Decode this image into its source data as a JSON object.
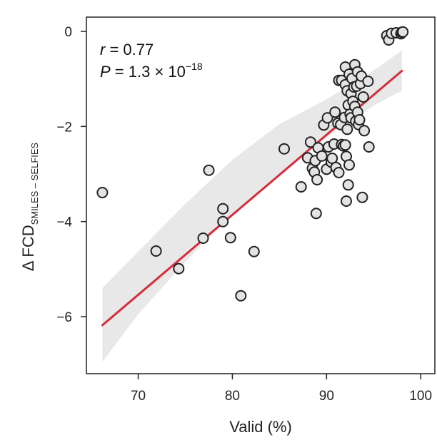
{
  "chart_data": {
    "type": "scatter",
    "title": "",
    "xlabel": "Valid (%)",
    "ylabel": {
      "prefix": "Δ FCD",
      "subscript": "SMILES – SELFIES"
    },
    "xlim": [
      64.5,
      101.5
    ],
    "ylim": [
      -7.2,
      0.3
    ],
    "xticks": [
      70,
      80,
      90,
      100
    ],
    "yticks": [
      0,
      -2,
      -4,
      -6
    ],
    "xtick_labels": [
      "70",
      "80",
      "90",
      "100"
    ],
    "ytick_labels": [
      "0",
      "−2",
      "−4",
      "−6"
    ],
    "annotations": {
      "r_symbol": "r",
      "r_value": " = 0.77",
      "p_symbol": "P",
      "p_value": " = 1.3 × 10",
      "p_exponent": "−18"
    },
    "regression": {
      "color": "#d62c3a",
      "x": [
        66.2,
        98.0
      ],
      "y": [
        -6.18,
        -0.83
      ],
      "band_color": "#e8e8e8",
      "band_upper": [
        [
          66.2,
          -5.4
        ],
        [
          70,
          -4.63
        ],
        [
          75,
          -3.63
        ],
        [
          80,
          -2.7
        ],
        [
          85,
          -1.95
        ],
        [
          90,
          -1.43
        ],
        [
          95,
          -0.82
        ],
        [
          98,
          -0.4
        ]
      ],
      "band_lower": [
        [
          66.2,
          -6.95
        ],
        [
          70,
          -5.95
        ],
        [
          75,
          -4.85
        ],
        [
          80,
          -3.83
        ],
        [
          85,
          -2.98
        ],
        [
          90,
          -2.23
        ],
        [
          95,
          -1.56
        ],
        [
          98,
          -1.25
        ]
      ]
    },
    "series": [
      {
        "name": "molecules",
        "points": [
          [
            66.2,
            -3.39
          ],
          [
            71.9,
            -4.62
          ],
          [
            74.3,
            -4.99
          ],
          [
            76.9,
            -4.35
          ],
          [
            77.5,
            -2.92
          ],
          [
            79.0,
            -3.73
          ],
          [
            79.0,
            -4.0
          ],
          [
            79.8,
            -4.34
          ],
          [
            80.9,
            -5.56
          ],
          [
            82.3,
            -4.63
          ],
          [
            85.5,
            -2.47
          ],
          [
            87.3,
            -3.27
          ],
          [
            88.0,
            -2.66
          ],
          [
            88.3,
            -2.33
          ],
          [
            88.5,
            -2.88
          ],
          [
            88.9,
            -3.83
          ],
          [
            88.7,
            -2.96
          ],
          [
            88.8,
            -2.72
          ],
          [
            89.0,
            -3.12
          ],
          [
            89.1,
            -2.45
          ],
          [
            89.5,
            -2.62
          ],
          [
            89.7,
            -1.97
          ],
          [
            90.0,
            -2.9
          ],
          [
            90.1,
            -1.82
          ],
          [
            90.2,
            -2.43
          ],
          [
            90.5,
            -2.75
          ],
          [
            90.6,
            -2.67
          ],
          [
            90.8,
            -2.37
          ],
          [
            90.9,
            -1.7
          ],
          [
            91.2,
            -1.93
          ],
          [
            91.0,
            -2.86
          ],
          [
            91.3,
            -2.97
          ],
          [
            91.3,
            -1.03
          ],
          [
            91.5,
            -1.96
          ],
          [
            91.6,
            -1.03
          ],
          [
            91.6,
            -2.38
          ],
          [
            91.8,
            -2.41
          ],
          [
            91.9,
            -1.81
          ],
          [
            92.0,
            -0.75
          ],
          [
            92.0,
            -1.12
          ],
          [
            92.0,
            -2.39
          ],
          [
            92.1,
            -2.63
          ],
          [
            92.1,
            -3.57
          ],
          [
            92.2,
            -1.25
          ],
          [
            92.2,
            -2.06
          ],
          [
            92.3,
            -1.55
          ],
          [
            92.3,
            -3.23
          ],
          [
            92.4,
            -2.81
          ],
          [
            92.4,
            -0.9
          ],
          [
            92.5,
            -1.74
          ],
          [
            92.6,
            -1.31
          ],
          [
            92.6,
            -1.82
          ],
          [
            92.7,
            -0.99
          ],
          [
            92.8,
            -1.47
          ],
          [
            92.9,
            -1.17
          ],
          [
            93.0,
            -0.7
          ],
          [
            93.0,
            -1.58
          ],
          [
            93.1,
            -1.89
          ],
          [
            93.2,
            -1.15
          ],
          [
            93.3,
            -0.85
          ],
          [
            93.3,
            -1.7
          ],
          [
            93.4,
            -1.96
          ],
          [
            93.5,
            -1.86
          ],
          [
            93.6,
            -1.1
          ],
          [
            93.7,
            -0.94
          ],
          [
            93.8,
            -3.49
          ],
          [
            93.9,
            -1.38
          ],
          [
            94.0,
            -2.09
          ],
          [
            94.4,
            -1.05
          ],
          [
            94.5,
            -2.43
          ],
          [
            96.4,
            -0.09
          ],
          [
            96.6,
            -0.18
          ],
          [
            96.9,
            -0.04
          ],
          [
            97.4,
            -0.03
          ],
          [
            97.9,
            -0.05
          ],
          [
            98.0,
            -0.02
          ],
          [
            98.1,
            -0.01
          ]
        ]
      }
    ]
  }
}
